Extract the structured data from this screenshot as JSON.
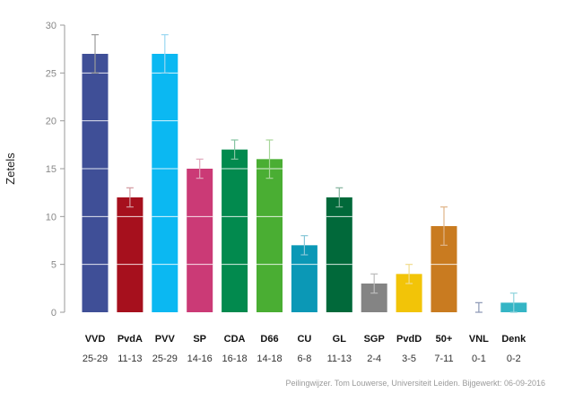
{
  "chart_data": {
    "type": "bar",
    "ylabel": "Zetels",
    "ylim": [
      0,
      30
    ],
    "yticks": [
      0,
      5,
      10,
      15,
      20,
      25,
      30
    ],
    "gridlines_on_bars": true,
    "categories": [
      "VVD",
      "PvdA",
      "PVV",
      "SP",
      "CDA",
      "D66",
      "CU",
      "GL",
      "SGP",
      "PvdD",
      "50+",
      "VNL",
      "Denk"
    ],
    "ranges": [
      "25-29",
      "11-13",
      "25-29",
      "14-16",
      "16-18",
      "14-18",
      "6-8",
      "11-13",
      "2-4",
      "3-5",
      "7-11",
      "0-1",
      "0-2"
    ],
    "values": [
      27,
      12,
      27,
      15,
      17,
      16,
      7,
      12,
      3,
      4,
      9,
      0,
      1
    ],
    "error_low": [
      25,
      11,
      25,
      14,
      16,
      14,
      6,
      11,
      2,
      3,
      7,
      0,
      0
    ],
    "error_high": [
      29,
      13,
      29,
      16,
      18,
      18,
      8,
      13,
      4,
      5,
      11,
      1,
      2
    ],
    "colors": [
      "#3f4f97",
      "#a6101d",
      "#0bb8f2",
      "#cb3a76",
      "#028a4e",
      "#4aae33",
      "#0b98b6",
      "#01693a",
      "#848484",
      "#f2c408",
      "#c97b20",
      "#2b59a7",
      "#35b5c5"
    ],
    "error_colors": [
      "#9a9a9a",
      "#d39aa0",
      "#9ad8f2",
      "#e0a7bc",
      "#86c4a2",
      "#a8d69a",
      "#86c6d8",
      "#86b49e",
      "#bcbcbc",
      "#f1dc8e",
      "#e0b487",
      "#8a96b4",
      "#8fd3dc"
    ]
  },
  "footer": {
    "credit": "Peilingwijzer. Tom Louwerse, Universiteit Leiden. Bijgewerkt: 06-09-2016"
  }
}
